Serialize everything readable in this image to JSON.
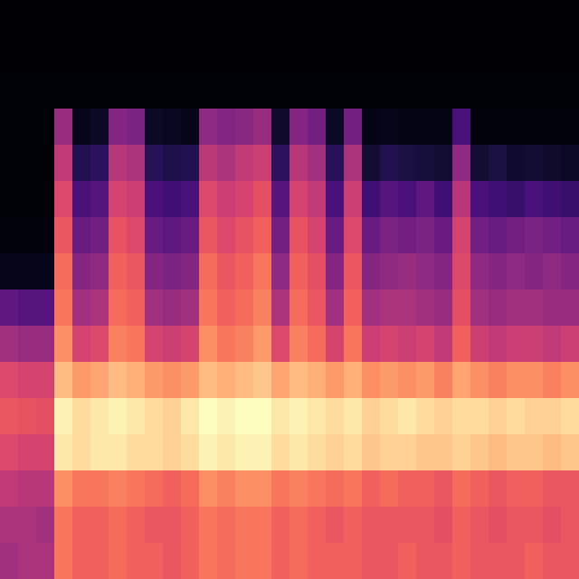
{
  "chart_data": {
    "type": "heatmap",
    "tick_labels": false,
    "cells": [
      [
        2,
        2,
        2,
        2,
        2,
        2,
        2,
        2,
        2,
        2,
        2,
        2,
        2,
        2,
        2,
        2,
        2,
        2,
        2,
        2,
        2,
        2,
        2,
        2,
        2,
        2,
        2,
        2,
        2,
        2,
        2,
        2
      ],
      [
        2,
        2,
        2,
        2,
        2,
        2,
        2,
        2,
        2,
        2,
        2,
        2,
        2,
        2,
        2,
        2,
        2,
        2,
        2,
        2,
        2,
        2,
        2,
        2,
        2,
        2,
        2,
        2,
        2,
        2,
        2,
        2
      ],
      [
        3,
        3,
        3,
        3,
        3,
        3,
        3,
        3,
        3,
        3,
        3,
        3,
        3,
        3,
        3,
        3,
        3,
        3,
        3,
        3,
        3,
        3,
        3,
        3,
        3,
        3,
        3,
        3,
        3,
        3,
        3,
        3
      ],
      [
        3,
        3,
        3,
        38,
        6,
        8,
        34,
        32,
        8,
        7,
        6,
        36,
        33,
        35,
        38,
        9,
        34,
        30,
        8,
        30,
        5,
        6,
        5,
        5,
        5,
        22,
        4,
        4,
        4,
        4,
        4,
        4
      ],
      [
        3,
        3,
        3,
        46,
        14,
        16,
        44,
        42,
        15,
        13,
        14,
        45,
        42,
        46,
        48,
        16,
        44,
        40,
        15,
        42,
        10,
        14,
        12,
        11,
        10,
        36,
        10,
        12,
        9,
        10,
        9,
        8
      ],
      [
        3,
        3,
        3,
        52,
        22,
        24,
        50,
        48,
        22,
        20,
        22,
        52,
        48,
        50,
        54,
        24,
        50,
        46,
        22,
        48,
        20,
        24,
        22,
        26,
        20,
        44,
        22,
        20,
        18,
        22,
        20,
        18
      ],
      [
        4,
        4,
        4,
        56,
        28,
        30,
        55,
        52,
        28,
        26,
        28,
        56,
        52,
        55,
        58,
        30,
        55,
        50,
        28,
        52,
        28,
        32,
        30,
        32,
        28,
        50,
        30,
        28,
        30,
        32,
        30,
        28
      ],
      [
        6,
        6,
        6,
        60,
        34,
        36,
        58,
        56,
        34,
        32,
        34,
        60,
        56,
        58,
        62,
        36,
        58,
        54,
        34,
        56,
        34,
        36,
        38,
        36,
        34,
        52,
        36,
        34,
        36,
        34,
        36,
        34
      ],
      [
        26,
        24,
        24,
        62,
        40,
        42,
        60,
        58,
        40,
        38,
        40,
        62,
        58,
        60,
        64,
        42,
        60,
        56,
        40,
        58,
        40,
        42,
        42,
        40,
        38,
        54,
        40,
        38,
        40,
        40,
        38,
        38
      ],
      [
        40,
        38,
        38,
        66,
        50,
        52,
        64,
        62,
        50,
        48,
        50,
        66,
        62,
        64,
        68,
        52,
        64,
        60,
        50,
        62,
        48,
        50,
        48,
        50,
        46,
        58,
        48,
        46,
        48,
        48,
        46,
        48
      ],
      [
        52,
        50,
        50,
        74,
        68,
        70,
        74,
        72,
        68,
        66,
        68,
        74,
        72,
        74,
        76,
        70,
        74,
        72,
        68,
        72,
        66,
        68,
        66,
        68,
        64,
        70,
        66,
        64,
        66,
        66,
        64,
        66
      ],
      [
        56,
        55,
        54,
        84,
        80,
        82,
        84,
        82,
        80,
        78,
        82,
        86,
        84,
        86,
        86,
        82,
        84,
        82,
        80,
        82,
        78,
        80,
        82,
        80,
        78,
        80,
        80,
        78,
        80,
        78,
        78,
        80
      ],
      [
        52,
        50,
        50,
        82,
        80,
        82,
        82,
        80,
        80,
        78,
        80,
        84,
        82,
        84,
        84,
        80,
        82,
        80,
        78,
        80,
        76,
        78,
        78,
        76,
        76,
        78,
        76,
        74,
        76,
        76,
        74,
        76
      ],
      [
        46,
        44,
        44,
        66,
        62,
        62,
        64,
        62,
        60,
        58,
        60,
        66,
        64,
        66,
        66,
        62,
        64,
        62,
        60,
        62,
        58,
        60,
        58,
        58,
        56,
        60,
        58,
        56,
        58,
        58,
        56,
        56
      ],
      [
        42,
        42,
        40,
        62,
        58,
        58,
        60,
        58,
        56,
        56,
        58,
        62,
        60,
        62,
        62,
        58,
        60,
        58,
        56,
        58,
        56,
        56,
        56,
        56,
        54,
        58,
        56,
        54,
        56,
        56,
        54,
        56
      ],
      [
        40,
        42,
        42,
        62,
        58,
        58,
        60,
        58,
        58,
        56,
        58,
        62,
        60,
        62,
        62,
        58,
        60,
        58,
        58,
        58,
        56,
        56,
        58,
        56,
        56,
        58,
        56,
        56,
        56,
        58,
        56,
        56
      ]
    ]
  }
}
